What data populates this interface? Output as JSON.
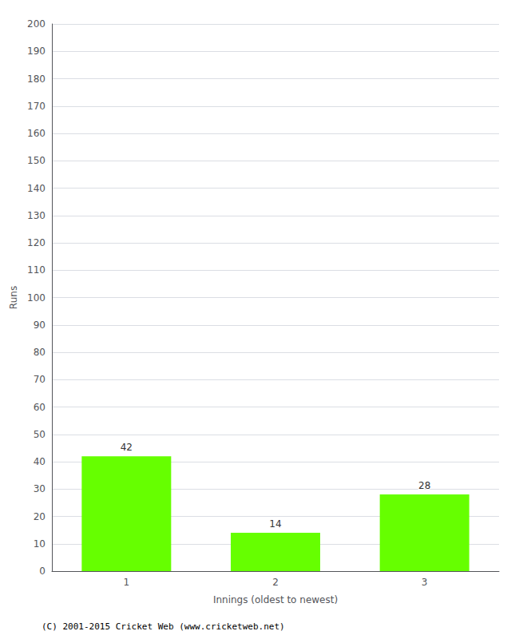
{
  "chart_data": {
    "type": "bar",
    "categories": [
      "1",
      "2",
      "3"
    ],
    "values": [
      42,
      14,
      28
    ],
    "color": "#66ff00",
    "xlabel": "Innings (oldest to newest)",
    "ylabel": "Runs",
    "ylim": [
      0,
      200
    ],
    "yticks": [
      0,
      10,
      20,
      30,
      40,
      50,
      60,
      70,
      80,
      90,
      100,
      110,
      120,
      130,
      140,
      150,
      160,
      170,
      180,
      190,
      200
    ],
    "grid": true,
    "data_labels": true,
    "annotations": [
      "(C) 2001-2015 Cricket Web (www.cricketweb.net)"
    ]
  }
}
